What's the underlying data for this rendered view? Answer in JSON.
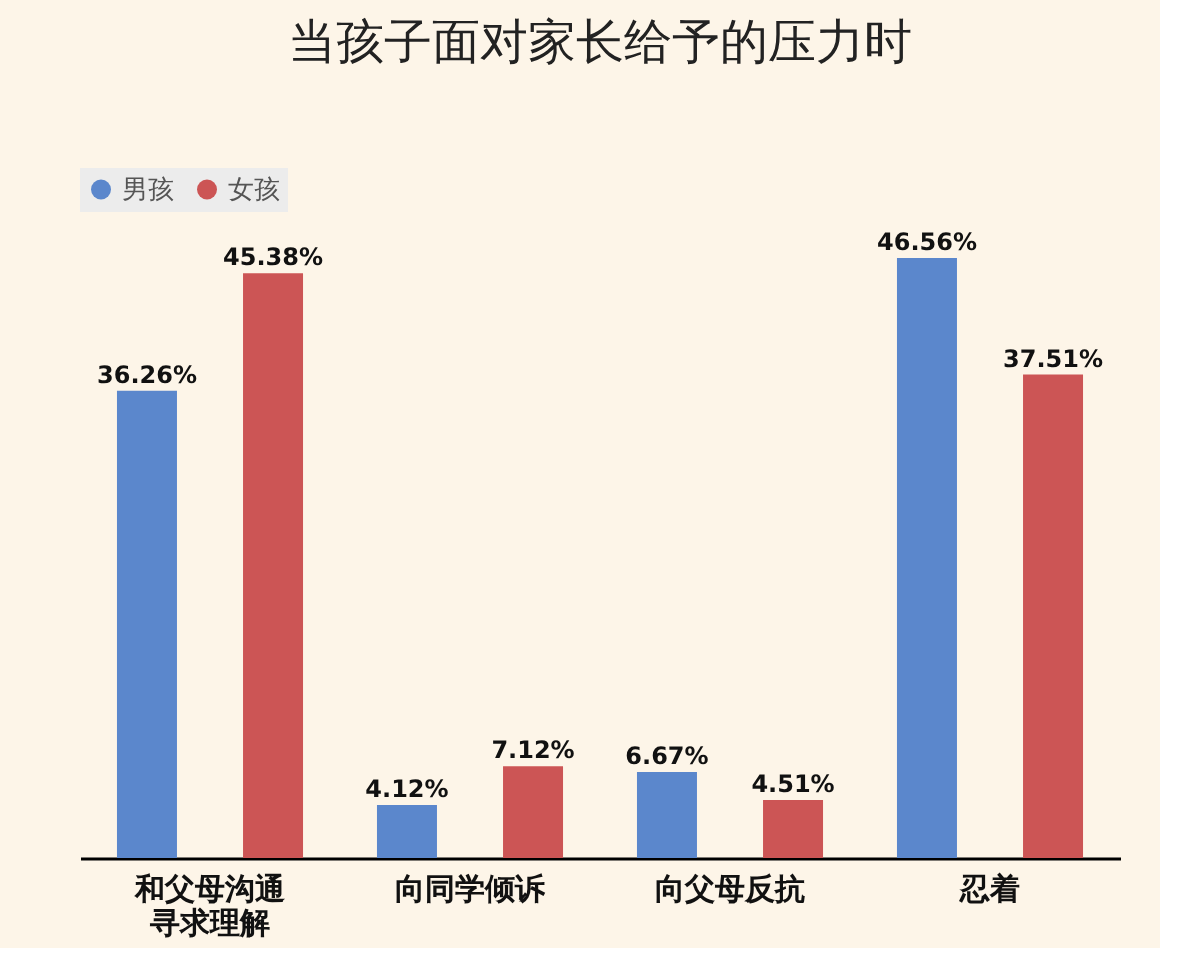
{
  "chart_data": {
    "type": "bar",
    "title": "当孩子面对家长给予的压力时",
    "categories": [
      "和父母沟通寻求理解",
      "向同学倾诉",
      "向父母反抗",
      "忍着"
    ],
    "series": [
      {
        "name": "男孩",
        "color": "#5b87cc",
        "values": [
          36.26,
          4.12,
          6.67,
          46.56
        ],
        "value_labels": [
          "36.26%",
          "4.12%",
          "6.67%",
          "46.56%"
        ]
      },
      {
        "name": "女孩",
        "color": "#cc5555",
        "values": [
          45.38,
          7.12,
          4.51,
          37.51
        ],
        "value_labels": [
          "45.38%",
          "7.12%",
          "4.51%",
          "37.51%"
        ]
      }
    ],
    "legend": "top left",
    "grid": false
  }
}
